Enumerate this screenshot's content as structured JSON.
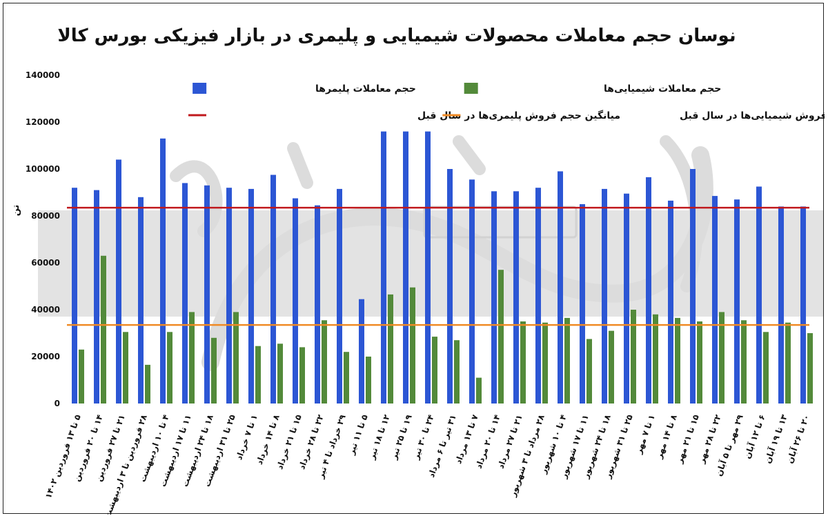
{
  "chart_data": {
    "type": "bar",
    "title": "نوسان حجم معاملات محصولات شیمیایی و پلیمری در بازار فیزیکی بورس کالا",
    "xlabel": "",
    "ylabel": "تن",
    "ylim": [
      0,
      140000
    ],
    "yticks": [
      0,
      20000,
      40000,
      60000,
      80000,
      100000,
      120000,
      140000
    ],
    "ytick_labels": [
      "0",
      "20000",
      "40000",
      "60000",
      "80000",
      "100000",
      "120000",
      "140000"
    ],
    "grid": false,
    "legend_position": "top",
    "categories": [
      "۵ تا ۱۳ فروردین ۱۴۰۲",
      "۱۴ تا ۲۰ فروردین",
      "۲۱ تا ۲۷ فروردین",
      "۲۸ فروردین تا ۳ اردیبهشت",
      "۴ تا ۱۰ اردیبهشت",
      "۱۱ تا ۱۷ اردیبهشت",
      "۱۸ تا ۲۴ اردیبهشت",
      "۲۵ تا ۳۱ اردیبهشت",
      "۱ تا ۷ خرداد",
      "۸ تا ۱۴ خرداد",
      "۱۵ تا ۲۱ خرداد",
      "۲۲ تا ۲۸ خرداد",
      "۲۹ خرداد تا ۴ تیر",
      "۵ تا ۱۱ تیر",
      "۱۲ تا ۱۸ تیر",
      "۱۹ تا ۲۵ تیر",
      "۲۴ تا ۳۰ تیر",
      "۳۱ تیر تا ۶ مرداد",
      "۷ تا ۱۳ مرداد",
      "۱۴ تا ۲۰ مرداد",
      "۲۱ تا ۲۷ مرداد",
      "۲۸ مرداد تا ۳ شهریور",
      "۴ تا ۱۰ شهریور",
      "۱۱ تا ۱۷ شهریور",
      "۱۸ تا ۲۴ شهریور",
      "۲۵ تا ۳۱ شهریور",
      "۱ تا ۷ مهر",
      "۸ تا ۱۴ مهر",
      "۱۵ تا ۲۱ مهر",
      "۲۲ تا ۲۸ مهر",
      "۲۹ مهر تا ۵ آبان",
      "۶ تا ۱۲ آبان",
      "۱۳ تا ۱۹ آبان",
      "۲۰ تا ۲۶ آبان"
    ],
    "series": [
      {
        "name": "حجم معاملات پلیمرها",
        "color": "#2c56d4",
        "values": [
          92000,
          91000,
          104000,
          88000,
          113000,
          94000,
          93000,
          92000,
          91500,
          97500,
          87500,
          84500,
          91500,
          44500,
          116000,
          116000,
          116000,
          100000,
          95500,
          90500,
          90500,
          92000,
          99000,
          85000,
          91500,
          89500,
          96500,
          86500,
          100000,
          88500,
          87000,
          92500,
          84000,
          84000
        ]
      },
      {
        "name": "حجم معاملات شیمیایی‌ها",
        "color": "#538a3a",
        "values": [
          23000,
          63000,
          30500,
          16500,
          30500,
          39000,
          28000,
          39000,
          24500,
          25500,
          24000,
          35500,
          22000,
          20000,
          46500,
          49500,
          28500,
          27000,
          11000,
          57000,
          35000,
          34500,
          36500,
          27500,
          31000,
          40000,
          38000,
          36500,
          35000,
          39000,
          35500,
          30500,
          34500,
          30000
        ]
      }
    ],
    "reference_lines": [
      {
        "name": "میانگین حجم فروش پلیمری‌ها در سال قبل",
        "value": 83500,
        "color": "#c0181c"
      },
      {
        "name": "میانگین حجم فروش شیمیایی‌ها در سال قبل",
        "value": 33500,
        "color": "#f08a24"
      }
    ],
    "watermark": "دنیای اقتصاد روزنامه صبح ایران"
  }
}
